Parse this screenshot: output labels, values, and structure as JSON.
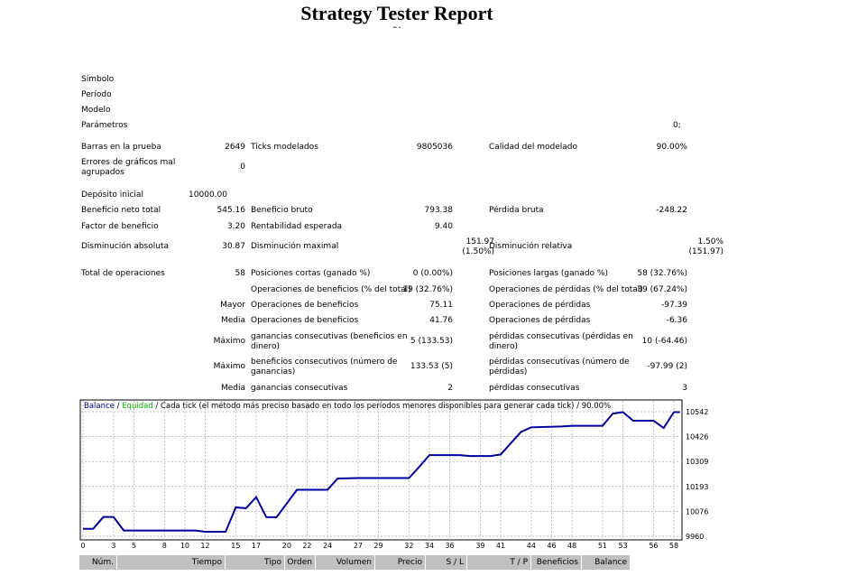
{
  "title": "Strategy Tester Report",
  "subtitle": "~ ·",
  "info": {
    "symbol": "Símbolo",
    "period": "Período",
    "model": "Modelo",
    "params": "Parámetros",
    "params_value": "0;"
  },
  "stats": {
    "bars_label": "Barras en la prueba",
    "bars": "2649",
    "ticks_label": "Ticks modelados",
    "ticks": "9805036",
    "quality_label": "Calidad del modelado",
    "quality": "90.00%",
    "errors_label": "Errores de gráficos mal agrupados",
    "errors": "0",
    "deposit_label": "Depósito inicial",
    "deposit": "10000.00",
    "net_label": "Beneficio neto total",
    "net": "545.16",
    "gross_profit_label": "Beneficio bruto",
    "gross_profit": "793.38",
    "gross_loss_label": "Pérdida bruta",
    "gross_loss": "-248.22",
    "pf_label": "Factor de beneficio",
    "pf": "3.20",
    "payoff_label": "Rentabilidad esperada",
    "payoff": "9.40",
    "abs_dd_label": "Disminución absoluta",
    "abs_dd": "30.87",
    "max_dd_label": "Disminución maximal",
    "max_dd": "151.97 (1.50%)",
    "rel_dd_label": "Disminución relativa",
    "rel_dd": "1.50% (151.97)",
    "trades_label": "Total de operaciones",
    "trades": "58",
    "short_label": "Posiciones cortas (ganado %)",
    "short": "0 (0.00%)",
    "long_label": "Posiciones largas (ganado %)",
    "long": "58 (32.76%)",
    "profit_trades_label": "Operaciones de beneficios (% del total)",
    "profit_trades": "19 (32.76%)",
    "loss_trades_label": "Operaciones de pérdidas (% del total)",
    "loss_trades": "39 (67.24%)",
    "largest": "Mayor",
    "largest_profit_label": "Operaciones de beneficios",
    "largest_profit": "75.11",
    "largest_loss_label": "Operaciones de pérdidas",
    "largest_loss": "-97.39",
    "average": "Media",
    "avg_profit_label": "Operaciones de beneficios",
    "avg_profit": "41.76",
    "avg_loss_label": "Operaciones de pérdidas",
    "avg_loss": "-6.36",
    "maximum": "Máximo",
    "max_cons_wins_label": "ganancias consecutivas (beneficios en dinero)",
    "max_cons_wins": "5 (133.53)",
    "max_cons_losses_label": "pérdidas consecutivas (pérdidas en dinero)",
    "max_cons_losses": "10 (-64.46)",
    "maximal": "Máximo",
    "max_cons_profit_label": "beneficios consecutivos (número de ganancias)",
    "max_cons_profit": "133.53 (5)",
    "max_cons_loss_label": "pérdidas consecutivas (número de pérdidas)",
    "max_cons_loss": "-97.99 (2)",
    "average2": "Media",
    "avg_cons_wins_label": "ganancias consecutivas",
    "avg_cons_wins": "2",
    "avg_cons_losses_label": "pérdidas consecutivas",
    "avg_cons_losses": "3"
  },
  "chart_data": {
    "type": "line",
    "legend": {
      "balance": "Balance",
      "sep1": " / ",
      "equity": "Equidad",
      "desc": " / Cada tick (el método más preciso basado en todo los períodos menores disponibles para generar cada tick)  / 90.00%"
    },
    "colors": {
      "balance": "#0000a0",
      "equity": "#00b000",
      "grid": "#c0c0c0"
    },
    "x_ticks": [
      "0",
      "3",
      "5",
      "8",
      "10",
      "12",
      "15",
      "17",
      "20",
      "22",
      "24",
      "27",
      "29",
      "32",
      "34",
      "36",
      "39",
      "41",
      "44",
      "46",
      "48",
      "51",
      "53",
      "56",
      "58"
    ],
    "y_ticks": [
      "10542",
      "10426",
      "10309",
      "10193",
      "10076",
      "9960"
    ],
    "xlim": [
      0,
      58
    ],
    "ylim": [
      9960,
      10560
    ],
    "x": [
      0,
      1,
      2,
      3,
      4,
      11,
      12,
      14,
      15,
      16,
      17,
      18,
      19,
      21,
      22,
      24,
      25,
      27,
      32,
      33,
      34,
      37,
      38,
      40,
      41,
      43,
      44,
      47,
      48,
      51,
      52,
      53,
      54,
      56,
      57,
      58,
      58.6
    ],
    "balance": [
      9995,
      9995,
      10050,
      10050,
      9987,
      9987,
      9981,
      9981,
      10095,
      10091,
      10143,
      10049,
      10049,
      10177,
      10177,
      10177,
      10230,
      10232,
      10232,
      10284,
      10339,
      10339,
      10335,
      10335,
      10342,
      10448,
      10469,
      10473,
      10476,
      10476,
      10533,
      10540,
      10500,
      10500,
      10466,
      10540,
      10540
    ]
  },
  "table": {
    "headers": [
      "Núm.",
      "Tiempo",
      "Tipo",
      "Orden",
      "Volumen",
      "Precio",
      "S / L",
      "T / P",
      "Beneficios",
      "Balance"
    ]
  }
}
